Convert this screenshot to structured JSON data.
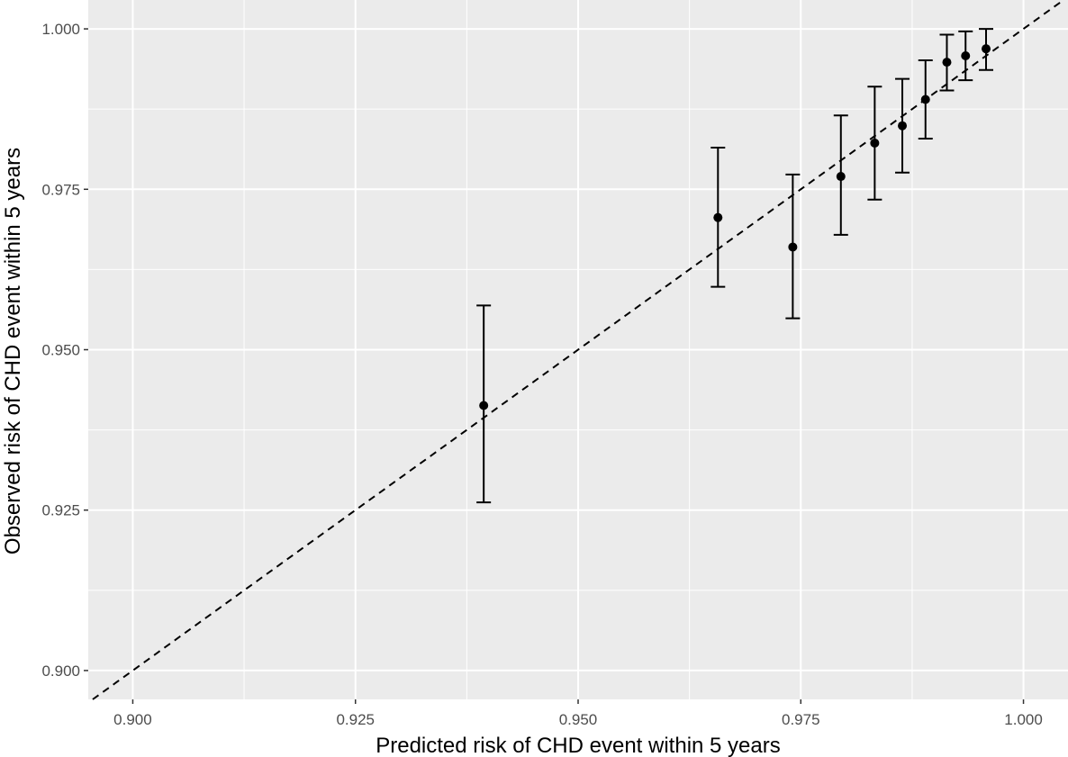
{
  "chart_data": {
    "type": "scatter",
    "title": "",
    "xlabel": "Predicted risk of CHD event within 5 years",
    "ylabel": "Observed risk of CHD event within 5 years",
    "xlim": [
      0.895,
      1.005
    ],
    "ylim": [
      0.8955,
      1.0045
    ],
    "x_ticks": [
      0.9,
      0.925,
      0.95,
      0.975,
      1.0
    ],
    "x_tick_labels": [
      "0.900",
      "0.925",
      "0.950",
      "0.975",
      "1.000"
    ],
    "y_ticks": [
      0.9,
      0.925,
      0.95,
      0.975,
      1.0
    ],
    "y_tick_labels": [
      "0.900",
      "0.925",
      "0.950",
      "0.975",
      "1.000"
    ],
    "grid": true,
    "legend": "none",
    "reference_line": {
      "slope": 1,
      "intercept": 0,
      "style": "dashed"
    },
    "points": [
      {
        "x": 0.9394,
        "y": 0.9413,
        "lower": 0.9262,
        "upper": 0.9569
      },
      {
        "x": 0.9657,
        "y": 0.9706,
        "lower": 0.9598,
        "upper": 0.9815
      },
      {
        "x": 0.9741,
        "y": 0.966,
        "lower": 0.9549,
        "upper": 0.9773
      },
      {
        "x": 0.9795,
        "y": 0.977,
        "lower": 0.9679,
        "upper": 0.9865
      },
      {
        "x": 0.9833,
        "y": 0.9822,
        "lower": 0.9734,
        "upper": 0.991
      },
      {
        "x": 0.9864,
        "y": 0.9849,
        "lower": 0.9776,
        "upper": 0.9922
      },
      {
        "x": 0.989,
        "y": 0.989,
        "lower": 0.9829,
        "upper": 0.9951
      },
      {
        "x": 0.9914,
        "y": 0.9948,
        "lower": 0.9904,
        "upper": 0.9991
      },
      {
        "x": 0.9935,
        "y": 0.9958,
        "lower": 0.992,
        "upper": 0.9996
      },
      {
        "x": 0.9958,
        "y": 0.9969,
        "lower": 0.9936,
        "upper": 1.0
      }
    ],
    "colors": {
      "panel": "#ebebeb",
      "grid": "#ffffff",
      "points": "#000000",
      "reference_line": "#000000"
    }
  }
}
